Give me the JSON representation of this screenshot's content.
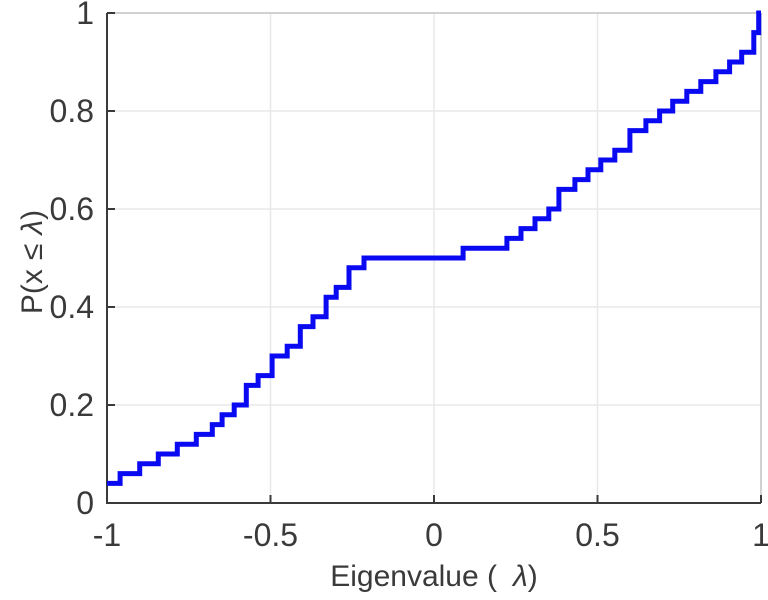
{
  "chart_data": {
    "type": "line-step-ecdf",
    "title": "",
    "xlabel": "Eigenvalue ( λ)",
    "xlabel_parts": {
      "prefix": "Eigenvalue (",
      "symbol": "λ",
      "suffix": ")"
    },
    "ylabel": "P(x ≤ λ)",
    "ylabel_parts": {
      "prefix": "P(x",
      "leq": "≤",
      "symbol": "λ",
      "suffix": ")"
    },
    "xlim": [
      -1,
      1
    ],
    "ylim": [
      0,
      1
    ],
    "x_ticks": [
      {
        "v": -1,
        "label": "-1"
      },
      {
        "v": -0.5,
        "label": "-0.5"
      },
      {
        "v": 0,
        "label": "0"
      },
      {
        "v": 0.5,
        "label": "0.5"
      },
      {
        "v": 1,
        "label": "1"
      }
    ],
    "y_ticks": [
      {
        "v": 0,
        "label": "0"
      },
      {
        "v": 0.2,
        "label": "0.2"
      },
      {
        "v": 0.4,
        "label": "0.4"
      },
      {
        "v": 0.6,
        "label": "0.6"
      },
      {
        "v": 0.8,
        "label": "0.8"
      },
      {
        "v": 1,
        "label": "1"
      }
    ],
    "grid": true,
    "legend": null,
    "eigenvalues": [
      -1.0,
      -1.0,
      -0.96,
      -0.9,
      -0.843,
      -0.785,
      -0.727,
      -0.678,
      -0.648,
      -0.611,
      -0.574,
      -0.574,
      -0.538,
      -0.495,
      -0.495,
      -0.449,
      -0.409,
      -0.409,
      -0.37,
      -0.33,
      -0.33,
      -0.299,
      -0.26,
      -0.26,
      -0.214,
      0.089,
      0.223,
      0.266,
      0.309,
      0.351,
      0.382,
      0.382,
      0.431,
      0.471,
      0.51,
      0.553,
      0.599,
      0.599,
      0.648,
      0.69,
      0.73,
      0.773,
      0.816,
      0.862,
      0.904,
      0.941,
      0.978,
      0.978,
      0.993,
      0.993
    ]
  },
  "colors": {
    "line": "#0a0af2",
    "axis": "#3a3a3a",
    "text": "#3a3a3a",
    "grid": "#e8e8e8",
    "box": "#c2c2c2",
    "background": "#ffffff"
  },
  "style": {
    "line_width": 5,
    "tick_font_size": 32,
    "label_font_size": 30
  }
}
